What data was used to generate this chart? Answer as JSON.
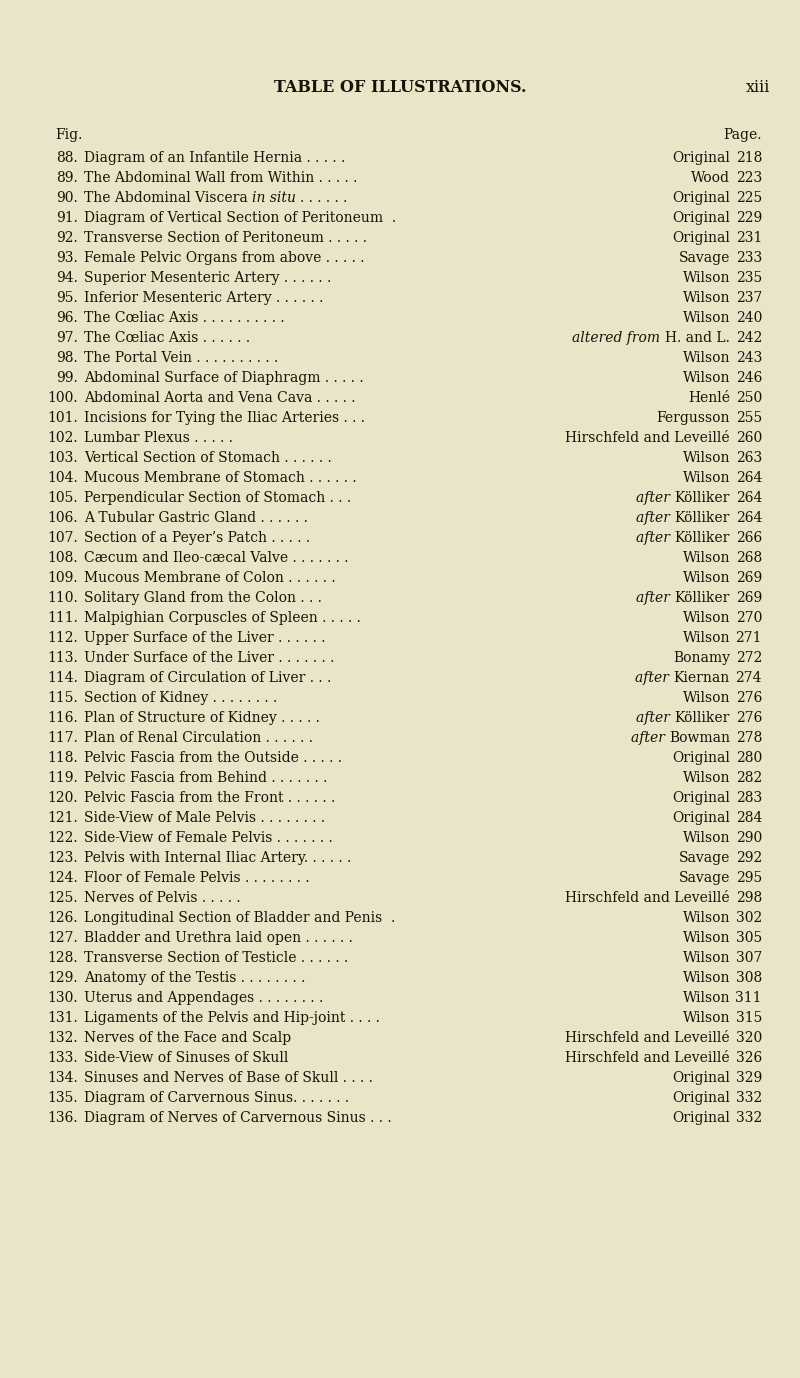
{
  "bg_color": "#e8e5c8",
  "text_color": "#1a1208",
  "title": "TABLE OF ILLUSTRATIONS.",
  "page_num": "xiii",
  "fig_label": "Fig.",
  "page_label": "Page.",
  "entries": [
    {
      "num": "88.",
      "desc": "Diagram of an Infantile Hernia",
      "dots": ". . . . .",
      "source": "Original",
      "source_italic": false,
      "after_italic": false,
      "page": "218",
      "desc_italic": null
    },
    {
      "num": "89.",
      "desc": "The Abdominal Wall from Within",
      "dots": ". . . . .",
      "source": "Wood",
      "source_italic": false,
      "after_italic": false,
      "page": "223",
      "desc_italic": null
    },
    {
      "num": "90.",
      "desc": "The Abdominal Viscera",
      "desc_italic": "in situ",
      "dots": ". . . . . .",
      "source": "Original",
      "source_italic": false,
      "after_italic": false,
      "page": "225"
    },
    {
      "num": "91.",
      "desc": "Diagram of Vertical Section of Peritoneum",
      "dots": " .",
      "source": "Original",
      "source_italic": false,
      "after_italic": false,
      "page": "229",
      "desc_italic": null
    },
    {
      "num": "92.",
      "desc": "Transverse Section of Peritoneum",
      "dots": ". . . . .",
      "source": "Original",
      "source_italic": false,
      "after_italic": false,
      "page": "231",
      "desc_italic": null
    },
    {
      "num": "93.",
      "desc": "Female Pelvic Organs from above",
      "dots": ". . . . .",
      "source": "Savage",
      "source_italic": false,
      "after_italic": false,
      "page": "233",
      "desc_italic": null
    },
    {
      "num": "94.",
      "desc": "Superior Mesenteric Artery",
      "dots": ". . . . . .",
      "source": "Wilson",
      "source_italic": false,
      "after_italic": false,
      "page": "235",
      "desc_italic": null
    },
    {
      "num": "95.",
      "desc": "Inferior Mesenteric Artery",
      "dots": ". . . . . .",
      "source": "Wilson",
      "source_italic": false,
      "after_italic": false,
      "page": "237",
      "desc_italic": null
    },
    {
      "num": "96.",
      "desc": "The Cœliac Axis",
      "dots": ". . . . . . . . . .",
      "source": "Wilson",
      "source_italic": false,
      "after_italic": false,
      "page": "240",
      "desc_italic": null
    },
    {
      "num": "97.",
      "desc": "The Cœliac Axis",
      "dots": ". . . . . .",
      "source": "altered from",
      "source_italic": true,
      "after_italic": false,
      "source2": "H. and L.",
      "page": "242",
      "desc_italic": null
    },
    {
      "num": "98.",
      "desc": "The Portal Vein",
      "dots": ". . . . . . . . . .",
      "source": "Wilson",
      "source_italic": false,
      "after_italic": false,
      "page": "243",
      "desc_italic": null
    },
    {
      "num": "99.",
      "desc": "Abdominal Surface of Diaphragm",
      "dots": ". . . . .",
      "source": "Wilson",
      "source_italic": false,
      "after_italic": false,
      "page": "246",
      "desc_italic": null
    },
    {
      "num": "100.",
      "desc": "Abdominal Aorta and Vena Cava",
      "dots": ". . . . .",
      "source": "Henlé",
      "source_italic": false,
      "after_italic": false,
      "page": "250",
      "desc_italic": null
    },
    {
      "num": "101.",
      "desc": "Incisions for Tying the Iliac Arteries",
      "dots": ". . .",
      "source": "Fergusson",
      "source_italic": false,
      "after_italic": false,
      "page": "255",
      "desc_italic": null
    },
    {
      "num": "102.",
      "desc": "Lumbar Plexus",
      "dots": ". . . . .",
      "source": "Hirschfeld and Leveillé",
      "source_italic": false,
      "after_italic": false,
      "page": "260",
      "desc_italic": null
    },
    {
      "num": "103.",
      "desc": "Vertical Section of Stomach",
      "dots": ". . . . . .",
      "source": "Wilson",
      "source_italic": false,
      "after_italic": false,
      "page": "263",
      "desc_italic": null
    },
    {
      "num": "104.",
      "desc": "Mucous Membrane of Stomach",
      "dots": ". . . . . .",
      "source": "Wilson",
      "source_italic": false,
      "after_italic": false,
      "page": "264",
      "desc_italic": null
    },
    {
      "num": "105.",
      "desc": "Perpendicular Section of Stomach",
      "dots": ". . .",
      "source": "after",
      "source_italic": true,
      "after_italic": true,
      "source2": "Kölliker",
      "page": "264",
      "desc_italic": null
    },
    {
      "num": "106.",
      "desc": "A Tubular Gastric Gland",
      "dots": ". . . . . .",
      "source": "after",
      "source_italic": true,
      "after_italic": true,
      "source2": "Kölliker",
      "page": "264",
      "desc_italic": null
    },
    {
      "num": "107.",
      "desc": "Section of a Peyer’s Patch",
      "dots": ". . . . .",
      "source": "after",
      "source_italic": true,
      "after_italic": true,
      "source2": "Kölliker",
      "page": "266",
      "desc_italic": null
    },
    {
      "num": "108.",
      "desc": "Cæcum and Ileo-cæcal Valve",
      "dots": ". . . . . . .",
      "source": "Wilson",
      "source_italic": false,
      "after_italic": false,
      "page": "268",
      "desc_italic": null
    },
    {
      "num": "109.",
      "desc": "Mucous Membrane of Colon",
      "dots": ". . . . . .",
      "source": "Wilson",
      "source_italic": false,
      "after_italic": false,
      "page": "269",
      "desc_italic": null
    },
    {
      "num": "110.",
      "desc": "Solitary Gland from the Colon",
      "dots": ". . .",
      "source": "after",
      "source_italic": true,
      "after_italic": true,
      "source2": "Kölliker",
      "page": "269",
      "desc_italic": null
    },
    {
      "num": "111.",
      "desc": "Malpighian Corpuscles of Spleen",
      "dots": ". . . . .",
      "source": "Wilson",
      "source_italic": false,
      "after_italic": false,
      "page": "270",
      "desc_italic": null
    },
    {
      "num": "112.",
      "desc": "Upper Surface of the Liver",
      "dots": ". . . . . .",
      "source": "Wilson",
      "source_italic": false,
      "after_italic": false,
      "page": "271",
      "desc_italic": null
    },
    {
      "num": "113.",
      "desc": "Under Surface of the Liver",
      "dots": ". . . . . . .",
      "source": "Bonamy",
      "source_italic": false,
      "after_italic": false,
      "page": "272",
      "desc_italic": null
    },
    {
      "num": "114.",
      "desc": "Diagram of Circulation of Liver",
      "dots": ". . .",
      "source": "after",
      "source_italic": true,
      "after_italic": true,
      "source2": "Kiernan",
      "page": "274",
      "desc_italic": null
    },
    {
      "num": "115.",
      "desc": "Section of Kidney",
      "dots": ". . . . . . . .",
      "source": "Wilson",
      "source_italic": false,
      "after_italic": false,
      "page": "276",
      "desc_italic": null
    },
    {
      "num": "116.",
      "desc": "Plan of Structure of Kidney",
      "dots": ". . . . .",
      "source": "after",
      "source_italic": true,
      "after_italic": true,
      "source2": "Kölliker",
      "page": "276",
      "desc_italic": null
    },
    {
      "num": "117.",
      "desc": "Plan of Renal Circulation",
      "dots": ". . . . . .",
      "source": "after",
      "source_italic": true,
      "after_italic": true,
      "source2": "Bowman",
      "page": "278",
      "desc_italic": null
    },
    {
      "num": "118.",
      "desc": "Pelvic Fascia from the Outside",
      "dots": ". . . . .",
      "source": "Original",
      "source_italic": false,
      "after_italic": false,
      "page": "280",
      "desc_italic": null
    },
    {
      "num": "119.",
      "desc": "Pelvic Fascia from Behind",
      "dots": ". . . . . . .",
      "source": "Wilson",
      "source_italic": false,
      "after_italic": false,
      "page": "282",
      "desc_italic": null
    },
    {
      "num": "120.",
      "desc": "Pelvic Fascia from the Front",
      "dots": ". . . . . .",
      "source": "Original",
      "source_italic": false,
      "after_italic": false,
      "page": "283",
      "desc_italic": null
    },
    {
      "num": "121.",
      "desc": "Side-View of Male Pelvis",
      "dots": ". . . . . . . .",
      "source": "Original",
      "source_italic": false,
      "after_italic": false,
      "page": "284",
      "desc_italic": null
    },
    {
      "num": "122.",
      "desc": "Side-View of Female Pelvis",
      "dots": ". . . . . . .",
      "source": "Wilson",
      "source_italic": false,
      "after_italic": false,
      "page": "290",
      "desc_italic": null
    },
    {
      "num": "123.",
      "desc": "Pelvis with Internal Iliac Artery.",
      "dots": ". . . . .",
      "source": "Savage",
      "source_italic": false,
      "after_italic": false,
      "page": "292",
      "desc_italic": null
    },
    {
      "num": "124.",
      "desc": "Floor of Female Pelvis",
      "dots": ". . . . . . . .",
      "source": "Savage",
      "source_italic": false,
      "after_italic": false,
      "page": "295",
      "desc_italic": null
    },
    {
      "num": "125.",
      "desc": "Nerves of Pelvis",
      "dots": ". . . . .",
      "source": "Hirschfeld and Leveillé",
      "source_italic": false,
      "after_italic": false,
      "page": "298",
      "desc_italic": null
    },
    {
      "num": "126.",
      "desc": "Longitudinal Section of Bladder and Penis",
      "dots": " .",
      "source": "Wilson",
      "source_italic": false,
      "after_italic": false,
      "page": "302",
      "desc_italic": null
    },
    {
      "num": "127.",
      "desc": "Bladder and Urethra laid open",
      "dots": ". . . . . .",
      "source": "Wilson",
      "source_italic": false,
      "after_italic": false,
      "page": "305",
      "desc_italic": null
    },
    {
      "num": "128.",
      "desc": "Transverse Section of Testicle",
      "dots": ". . . . . .",
      "source": "Wilson",
      "source_italic": false,
      "after_italic": false,
      "page": "307",
      "desc_italic": null
    },
    {
      "num": "129.",
      "desc": "Anatomy of the Testis",
      "dots": ". . . . . . . .",
      "source": "Wilson",
      "source_italic": false,
      "after_italic": false,
      "page": "308",
      "desc_italic": null
    },
    {
      "num": "130.",
      "desc": "Uterus and Appendages",
      "dots": ". . . . . . . .",
      "source": "Wilson",
      "source_italic": false,
      "after_italic": false,
      "page": "311",
      "desc_italic": null
    },
    {
      "num": "131.",
      "desc": "Ligaments of the Pelvis and Hip-joint",
      "dots": ". . . .",
      "source": "Wilson",
      "source_italic": false,
      "after_italic": false,
      "page": "315",
      "desc_italic": null
    },
    {
      "num": "132.",
      "desc": "Nerves of the Face and Scalp",
      "dots": "   ",
      "source": "Hirschfeld and Leveillé",
      "source_italic": false,
      "after_italic": false,
      "page": "320",
      "desc_italic": null
    },
    {
      "num": "133.",
      "desc": "Side-View of Sinuses of Skull",
      "dots": "   ",
      "source": "Hirschfeld and Leveillé",
      "source_italic": false,
      "after_italic": false,
      "page": "326",
      "desc_italic": null
    },
    {
      "num": "134.",
      "desc": "Sinuses and Nerves of Base of Skull",
      "dots": ". . . .",
      "source": "Original",
      "source_italic": false,
      "after_italic": false,
      "page": "329",
      "desc_italic": null
    },
    {
      "num": "135.",
      "desc": "Diagram of Carvernous Sinus.",
      "dots": ". . . . . .",
      "source": "Original",
      "source_italic": false,
      "after_italic": false,
      "page": "332",
      "desc_italic": null
    },
    {
      "num": "136.",
      "desc": "Diagram of Nerves of Carvernous Sinus",
      "dots": ". . .",
      "source": "Original",
      "source_italic": false,
      "after_italic": false,
      "page": "332",
      "desc_italic": null
    }
  ],
  "title_fontsize": 11.5,
  "entry_fontsize": 10.0,
  "header_fontsize": 10.0
}
